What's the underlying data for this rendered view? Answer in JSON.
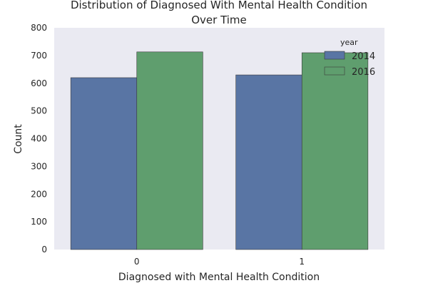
{
  "chart_data": {
    "type": "bar",
    "title": "Distribution of Diagnosed With Mental Health Condition\nOver Time",
    "title_lines": [
      "Distribution of Diagnosed With Mental Health Condition",
      "Over Time"
    ],
    "xlabel": "Diagnosed with Mental Health Condition",
    "ylabel": "Count",
    "categories": [
      "0",
      "1"
    ],
    "ylim": [
      0,
      800
    ],
    "yticks": [
      0,
      100,
      200,
      300,
      400,
      500,
      600,
      700,
      800
    ],
    "grid": false,
    "legend": {
      "title": "year",
      "placement": "top-right"
    },
    "series": [
      {
        "name": "2014",
        "color": "#5975a4",
        "values": [
          620,
          630
        ]
      },
      {
        "name": "2016",
        "color": "#5f9e6e",
        "values": [
          713,
          710
        ]
      }
    ],
    "plot_background": "#eaeaf2"
  }
}
